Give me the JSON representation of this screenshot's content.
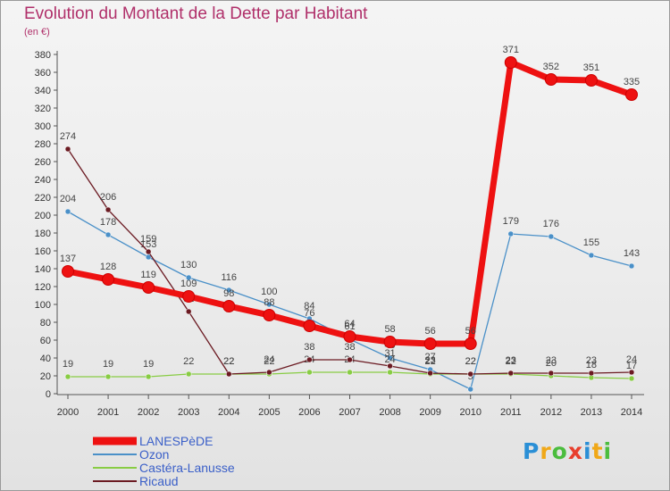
{
  "title": "Evolution du Montant de la Dette par Habitant",
  "subtitle": "(en €)",
  "logo": {
    "letters": [
      "P",
      "r",
      "o",
      "x",
      "i",
      "t",
      "i"
    ],
    "colors": [
      "#2a8fd6",
      "#f0a818",
      "#4bbd3e",
      "#e83f2d",
      "#2a8fd6",
      "#f0a818",
      "#4bbd3e"
    ]
  },
  "chart_data": {
    "type": "line",
    "title": "Evolution du Montant de la Dette par Habitant",
    "subtitle": "(en €)",
    "xlabel": "",
    "ylabel": "",
    "ylim": [
      0,
      380
    ],
    "ytick_step": 20,
    "grid": false,
    "legend_position": "bottom-left",
    "x": [
      "2000",
      "2001",
      "2002",
      "2003",
      "2004",
      "2005",
      "2006",
      "2007",
      "2008",
      "2009",
      "2010",
      "2011",
      "2012",
      "2013",
      "2014"
    ],
    "series": [
      {
        "name": "LANESPèDE",
        "color": "#ee1111",
        "emphasis": true,
        "values": [
          137,
          128,
          119,
          109,
          98,
          88,
          76,
          64,
          58,
          56,
          56,
          371,
          352,
          351,
          335
        ]
      },
      {
        "name": "Ozon",
        "color": "#4a90c8",
        "emphasis": false,
        "values": [
          204,
          178,
          153,
          130,
          116,
          100,
          84,
          61,
          40,
          27,
          5,
          179,
          176,
          155,
          143
        ]
      },
      {
        "name": "Castéra-Lanusse",
        "color": "#88cc44",
        "emphasis": false,
        "values": [
          19,
          19,
          19,
          22,
          22,
          22,
          24,
          24,
          24,
          22,
          22,
          22,
          20,
          18,
          17
        ]
      },
      {
        "name": "Ricaud",
        "color": "#6b1a22",
        "emphasis": false,
        "values": [
          274,
          206,
          159,
          92,
          22,
          24,
          38,
          38,
          31,
          23,
          22,
          23,
          23,
          23,
          24
        ]
      }
    ]
  }
}
